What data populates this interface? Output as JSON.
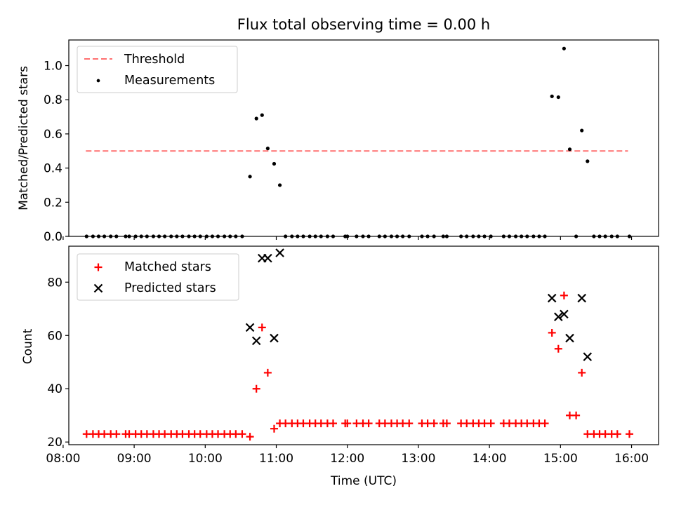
{
  "chart_data": [
    {
      "type": "scatter",
      "title": "Flux total observing time = 0.00 h",
      "ylabel": "Matched/Predicted stars",
      "xlabel": "",
      "xlim": [
        8.08,
        16.38
      ],
      "ylim": [
        0.0,
        1.15
      ],
      "x_ticks": [
        8,
        9,
        10,
        11,
        12,
        13,
        14,
        15,
        16
      ],
      "y_ticks": [
        0.0,
        0.2,
        0.4,
        0.6,
        0.8,
        1.0
      ],
      "y_tick_labels": [
        "0.0",
        "0.2",
        "0.4",
        "0.6",
        "0.8",
        "1.0"
      ],
      "legend": [
        "Threshold",
        "Measurements"
      ],
      "legend_position": "upper left",
      "threshold": {
        "name": "Threshold",
        "value": 0.5,
        "x_range": [
          8.32,
          15.95
        ],
        "color": "#ff7070",
        "style": "dashed"
      },
      "series": [
        {
          "name": "Measurements",
          "color": "#000000",
          "marker": "dot",
          "points": [
            [
              8.33,
              0
            ],
            [
              8.42,
              0
            ],
            [
              8.5,
              0
            ],
            [
              8.58,
              0
            ],
            [
              8.67,
              0
            ],
            [
              8.75,
              0
            ],
            [
              8.88,
              0
            ],
            [
              8.93,
              0
            ],
            [
              9.02,
              0
            ],
            [
              9.1,
              0
            ],
            [
              9.18,
              0
            ],
            [
              9.27,
              0
            ],
            [
              9.35,
              0
            ],
            [
              9.43,
              0
            ],
            [
              9.52,
              0
            ],
            [
              9.6,
              0
            ],
            [
              9.68,
              0
            ],
            [
              9.77,
              0
            ],
            [
              9.85,
              0
            ],
            [
              9.93,
              0
            ],
            [
              10.02,
              0
            ],
            [
              10.1,
              0
            ],
            [
              10.18,
              0
            ],
            [
              10.27,
              0
            ],
            [
              10.35,
              0
            ],
            [
              10.43,
              0
            ],
            [
              10.52,
              0
            ],
            [
              10.63,
              0.35
            ],
            [
              10.72,
              0.69
            ],
            [
              10.8,
              0.71
            ],
            [
              10.88,
              0.515
            ],
            [
              10.97,
              0.425
            ],
            [
              11.05,
              0.3
            ],
            [
              11.13,
              0
            ],
            [
              11.22,
              0
            ],
            [
              11.3,
              0
            ],
            [
              11.38,
              0
            ],
            [
              11.47,
              0
            ],
            [
              11.55,
              0
            ],
            [
              11.63,
              0
            ],
            [
              11.72,
              0
            ],
            [
              11.8,
              0
            ],
            [
              11.97,
              0
            ],
            [
              12.0,
              0
            ],
            [
              12.13,
              0
            ],
            [
              12.22,
              0
            ],
            [
              12.3,
              0
            ],
            [
              12.45,
              0
            ],
            [
              12.53,
              0
            ],
            [
              12.62,
              0
            ],
            [
              12.7,
              0
            ],
            [
              12.78,
              0
            ],
            [
              12.87,
              0
            ],
            [
              13.05,
              0
            ],
            [
              13.13,
              0
            ],
            [
              13.22,
              0
            ],
            [
              13.35,
              0
            ],
            [
              13.4,
              0
            ],
            [
              13.6,
              0
            ],
            [
              13.68,
              0
            ],
            [
              13.77,
              0
            ],
            [
              13.85,
              0
            ],
            [
              13.93,
              0
            ],
            [
              14.02,
              0
            ],
            [
              14.2,
              0
            ],
            [
              14.28,
              0
            ],
            [
              14.37,
              0
            ],
            [
              14.45,
              0
            ],
            [
              14.53,
              0
            ],
            [
              14.62,
              0
            ],
            [
              14.7,
              0
            ],
            [
              14.78,
              0
            ],
            [
              14.88,
              0.82
            ],
            [
              14.97,
              0.815
            ],
            [
              15.05,
              1.1
            ],
            [
              15.13,
              0.51
            ],
            [
              15.3,
              0.62
            ],
            [
              15.38,
              0.44
            ],
            [
              15.22,
              0
            ],
            [
              15.47,
              0
            ],
            [
              15.55,
              0
            ],
            [
              15.63,
              0
            ],
            [
              15.72,
              0
            ],
            [
              15.8,
              0
            ],
            [
              15.97,
              0
            ]
          ]
        }
      ]
    },
    {
      "type": "scatter",
      "title": "",
      "ylabel": "Count",
      "xlabel": "Time (UTC)",
      "xlim": [
        8.08,
        16.38
      ],
      "ylim": [
        19.0,
        93.5
      ],
      "x_ticks": [
        8,
        9,
        10,
        11,
        12,
        13,
        14,
        15,
        16
      ],
      "x_tick_labels": [
        "08:00",
        "09:00",
        "10:00",
        "11:00",
        "12:00",
        "13:00",
        "14:00",
        "15:00",
        "16:00"
      ],
      "y_ticks": [
        20,
        40,
        60,
        80
      ],
      "y_tick_labels": [
        "20",
        "40",
        "60",
        "80"
      ],
      "legend": [
        "Matched stars",
        "Predicted stars"
      ],
      "legend_position": "upper left",
      "series": [
        {
          "name": "Matched stars",
          "color": "#ff0000",
          "marker": "plus",
          "points": [
            [
              8.33,
              23
            ],
            [
              8.42,
              23
            ],
            [
              8.5,
              23
            ],
            [
              8.58,
              23
            ],
            [
              8.67,
              23
            ],
            [
              8.75,
              23
            ],
            [
              8.88,
              23
            ],
            [
              8.93,
              23
            ],
            [
              9.02,
              23
            ],
            [
              9.1,
              23
            ],
            [
              9.18,
              23
            ],
            [
              9.27,
              23
            ],
            [
              9.35,
              23
            ],
            [
              9.43,
              23
            ],
            [
              9.52,
              23
            ],
            [
              9.6,
              23
            ],
            [
              9.68,
              23
            ],
            [
              9.77,
              23
            ],
            [
              9.85,
              23
            ],
            [
              9.93,
              23
            ],
            [
              10.02,
              23
            ],
            [
              10.1,
              23
            ],
            [
              10.18,
              23
            ],
            [
              10.27,
              23
            ],
            [
              10.35,
              23
            ],
            [
              10.43,
              23
            ],
            [
              10.52,
              23
            ],
            [
              10.63,
              22
            ],
            [
              10.72,
              40
            ],
            [
              10.8,
              63
            ],
            [
              10.88,
              46
            ],
            [
              10.97,
              25
            ],
            [
              11.05,
              27
            ],
            [
              11.13,
              27
            ],
            [
              11.22,
              27
            ],
            [
              11.3,
              27
            ],
            [
              11.38,
              27
            ],
            [
              11.47,
              27
            ],
            [
              11.55,
              27
            ],
            [
              11.63,
              27
            ],
            [
              11.72,
              27
            ],
            [
              11.8,
              27
            ],
            [
              11.97,
              27
            ],
            [
              12.0,
              27
            ],
            [
              12.13,
              27
            ],
            [
              12.22,
              27
            ],
            [
              12.3,
              27
            ],
            [
              12.45,
              27
            ],
            [
              12.53,
              27
            ],
            [
              12.62,
              27
            ],
            [
              12.7,
              27
            ],
            [
              12.78,
              27
            ],
            [
              12.87,
              27
            ],
            [
              13.05,
              27
            ],
            [
              13.13,
              27
            ],
            [
              13.22,
              27
            ],
            [
              13.35,
              27
            ],
            [
              13.4,
              27
            ],
            [
              13.6,
              27
            ],
            [
              13.68,
              27
            ],
            [
              13.77,
              27
            ],
            [
              13.85,
              27
            ],
            [
              13.93,
              27
            ],
            [
              14.02,
              27
            ],
            [
              14.2,
              27
            ],
            [
              14.28,
              27
            ],
            [
              14.37,
              27
            ],
            [
              14.45,
              27
            ],
            [
              14.53,
              27
            ],
            [
              14.62,
              27
            ],
            [
              14.7,
              27
            ],
            [
              14.78,
              27
            ],
            [
              14.88,
              61
            ],
            [
              14.97,
              55
            ],
            [
              15.05,
              75
            ],
            [
              15.13,
              30
            ],
            [
              15.22,
              30
            ],
            [
              15.3,
              46
            ],
            [
              15.38,
              23
            ],
            [
              15.47,
              23
            ],
            [
              15.55,
              23
            ],
            [
              15.63,
              23
            ],
            [
              15.72,
              23
            ],
            [
              15.8,
              23
            ],
            [
              15.97,
              23
            ]
          ]
        },
        {
          "name": "Predicted stars",
          "color": "#000000",
          "marker": "x",
          "points": [
            [
              10.63,
              63
            ],
            [
              10.72,
              58
            ],
            [
              10.8,
              89
            ],
            [
              10.88,
              89
            ],
            [
              10.97,
              59
            ],
            [
              11.05,
              91
            ],
            [
              14.88,
              74
            ],
            [
              14.97,
              67
            ],
            [
              15.05,
              68
            ],
            [
              15.13,
              59
            ],
            [
              15.3,
              74
            ],
            [
              15.38,
              52
            ]
          ]
        }
      ]
    }
  ]
}
